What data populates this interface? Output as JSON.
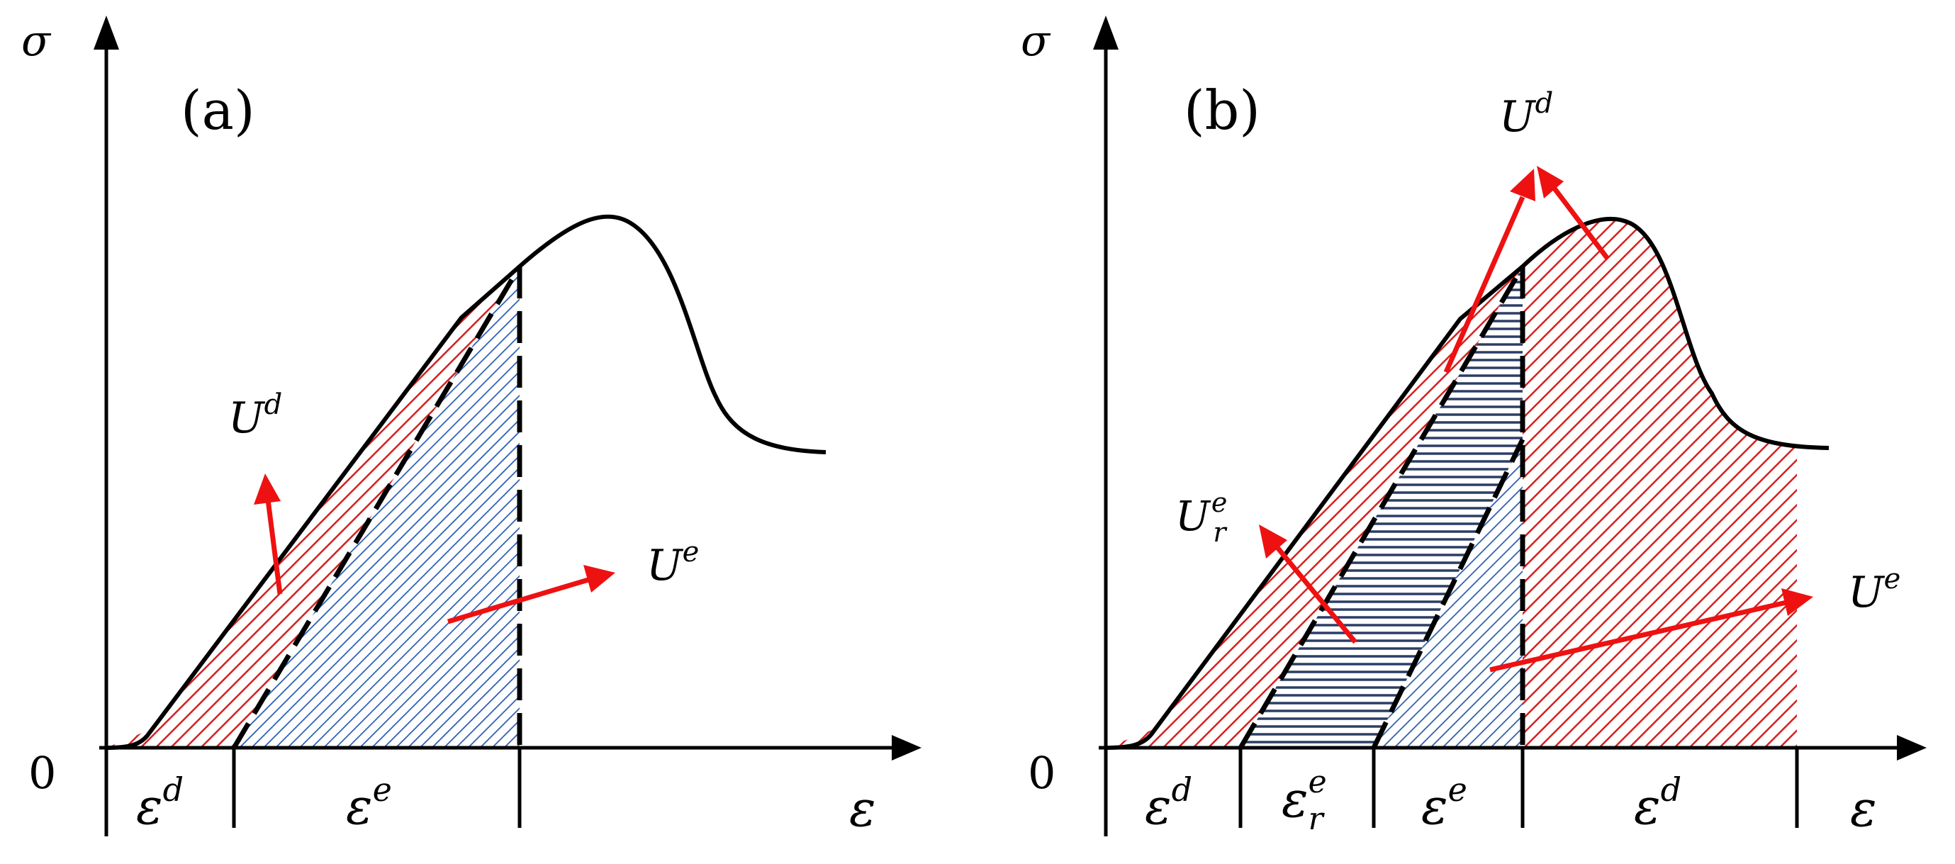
{
  "panel_a": {
    "tag": "(a)",
    "y_axis": "σ",
    "x_axis": "ε",
    "origin": "0",
    "energy_dissipated": {
      "base": "U",
      "sup": "d"
    },
    "energy_elastic": {
      "base": "U",
      "sup": "e"
    },
    "strain_segments": [
      {
        "base": "ε",
        "sup": "d",
        "sub": ""
      },
      {
        "base": "ε",
        "sup": "e",
        "sub": ""
      }
    ]
  },
  "panel_b": {
    "tag": "(b)",
    "y_axis": "σ",
    "x_axis": "ε",
    "origin": "0",
    "energy_dissipated": {
      "base": "U",
      "sup": "d"
    },
    "energy_released": {
      "base": "U",
      "sup": "e",
      "sub": "r"
    },
    "energy_elastic": {
      "base": "U",
      "sup": "e"
    },
    "strain_segments": [
      {
        "base": "ε",
        "sup": "d",
        "sub": ""
      },
      {
        "base": "ε",
        "sup": "e",
        "sub": "r"
      },
      {
        "base": "ε",
        "sup": "e",
        "sub": ""
      },
      {
        "base": "ε",
        "sup": "d",
        "sub": ""
      }
    ]
  },
  "colors": {
    "curve": "#000000",
    "dissipated_hatch": "#d42020",
    "elastic_hatch": "#2a5db0",
    "released_hatch": "#2c3e66",
    "arrow": "#ee1111"
  }
}
